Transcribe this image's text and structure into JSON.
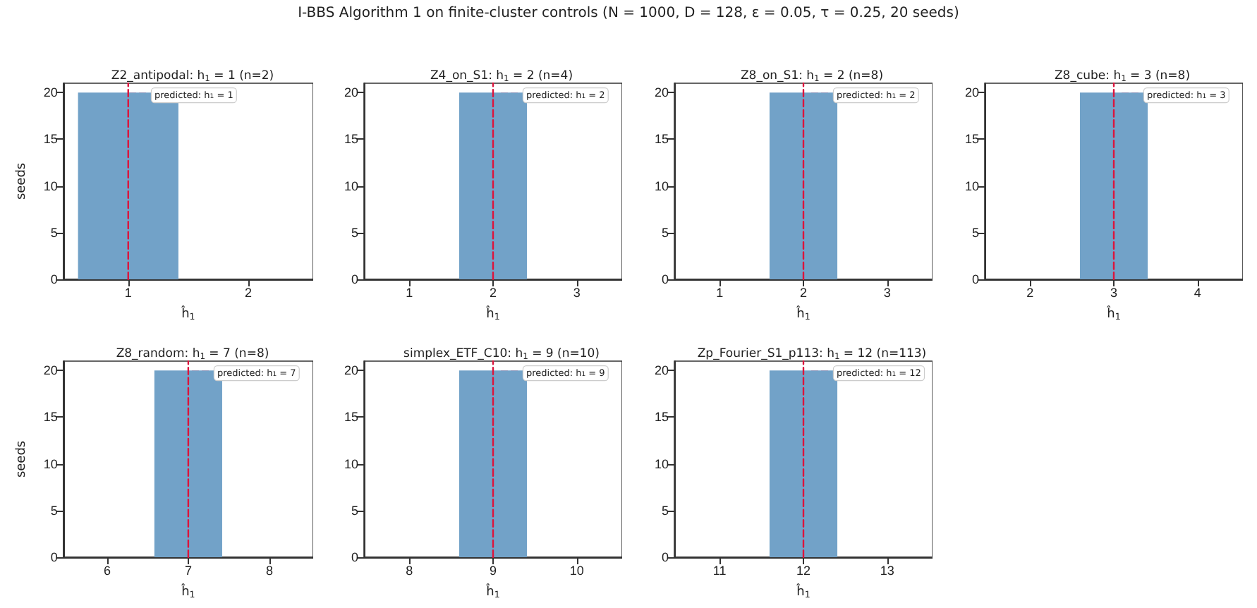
{
  "chart_data": [
    {
      "type": "other",
      "title": "I-BBS Algorithm 1 on finite-cluster controls (N = 1000, D = 128, ε = 0.05, τ = 0.25, 20 seeds)"
    },
    {
      "type": "bar",
      "title": "Z2_antipodal: h$_{1}$ = 1 (n=2)",
      "xlabel": "ĥ$_{1}$",
      "ylabel": "seeds",
      "x": [
        1,
        2
      ],
      "values": [
        20,
        0
      ],
      "color": "#72a2c8",
      "xlim": [
        0.46,
        2.54
      ],
      "xticks": [
        1,
        2
      ],
      "ylim": [
        0,
        21
      ],
      "yticks": [
        0,
        5,
        10,
        15,
        20
      ],
      "ref_lines": [
        {
          "axis": "x",
          "value": 1,
          "label": "predicted: h$_{1}$ = 1",
          "color": "#dc143c",
          "line_style": "dashed"
        }
      ],
      "legend": "top right"
    },
    {
      "type": "bar",
      "title": "Z4_on_S1: h$_{1}$ = 2 (n=4)",
      "xlabel": "ĥ$_{1}$",
      "x": [
        1,
        2,
        3
      ],
      "values": [
        0,
        20,
        0
      ],
      "color": "#72a2c8",
      "xlim": [
        0.46,
        3.54
      ],
      "xticks": [
        1,
        2,
        3
      ],
      "ylim": [
        0,
        21
      ],
      "yticks": [
        0,
        5,
        10,
        15,
        20
      ],
      "ref_lines": [
        {
          "axis": "x",
          "value": 2,
          "label": "predicted: h$_{1}$ = 2",
          "color": "#dc143c",
          "line_style": "dashed"
        }
      ],
      "legend": "top right"
    },
    {
      "type": "bar",
      "title": "Z8_on_S1: h$_{1}$ = 2 (n=8)",
      "xlabel": "ĥ$_{1}$",
      "x": [
        1,
        2,
        3
      ],
      "values": [
        0,
        20,
        0
      ],
      "color": "#72a2c8",
      "xlim": [
        0.46,
        3.54
      ],
      "xticks": [
        1,
        2,
        3
      ],
      "ylim": [
        0,
        21
      ],
      "yticks": [
        0,
        5,
        10,
        15,
        20
      ],
      "ref_lines": [
        {
          "axis": "x",
          "value": 2,
          "label": "predicted: h$_{1}$ = 2",
          "color": "#dc143c",
          "line_style": "dashed"
        }
      ],
      "legend": "top right"
    },
    {
      "type": "bar",
      "title": "Z8_cube: h$_{1}$ = 3 (n=8)",
      "xlabel": "ĥ$_{1}$",
      "x": [
        2,
        3,
        4
      ],
      "values": [
        0,
        20,
        0
      ],
      "color": "#72a2c8",
      "xlim": [
        1.46,
        4.54
      ],
      "xticks": [
        2,
        3,
        4
      ],
      "ylim": [
        0,
        21
      ],
      "yticks": [
        0,
        5,
        10,
        15,
        20
      ],
      "ref_lines": [
        {
          "axis": "x",
          "value": 3,
          "label": "predicted: h$_{1}$ = 3",
          "color": "#dc143c",
          "line_style": "dashed"
        }
      ],
      "legend": "top right"
    },
    {
      "type": "bar",
      "title": "Z8_random: h$_{1}$ = 7 (n=8)",
      "xlabel": "ĥ$_{1}$",
      "ylabel": "seeds",
      "x": [
        6,
        7,
        8
      ],
      "values": [
        0,
        20,
        0
      ],
      "color": "#72a2c8",
      "xlim": [
        5.46,
        8.54
      ],
      "xticks": [
        6,
        7,
        8
      ],
      "ylim": [
        0,
        21
      ],
      "yticks": [
        0,
        5,
        10,
        15,
        20
      ],
      "ref_lines": [
        {
          "axis": "x",
          "value": 7,
          "label": "predicted: h$_{1}$ = 7",
          "color": "#dc143c",
          "line_style": "dashed"
        }
      ],
      "legend": "top right"
    },
    {
      "type": "bar",
      "title": "simplex_ETF_C10: h$_{1}$ = 9 (n=10)",
      "xlabel": "ĥ$_{1}$",
      "x": [
        8,
        9,
        10
      ],
      "values": [
        0,
        20,
        0
      ],
      "color": "#72a2c8",
      "xlim": [
        7.46,
        10.54
      ],
      "xticks": [
        8,
        9,
        10
      ],
      "ylim": [
        0,
        21
      ],
      "yticks": [
        0,
        5,
        10,
        15,
        20
      ],
      "ref_lines": [
        {
          "axis": "x",
          "value": 9,
          "label": "predicted: h$_{1}$ = 9",
          "color": "#dc143c",
          "line_style": "dashed"
        }
      ],
      "legend": "top right"
    },
    {
      "type": "bar",
      "title": "Zp_Fourier_S1_p113: h$_{1}$ = 12 (n=113)",
      "xlabel": "ĥ$_{1}$",
      "x": [
        11,
        12,
        13
      ],
      "values": [
        0,
        20,
        0
      ],
      "color": "#72a2c8",
      "xlim": [
        10.46,
        13.54
      ],
      "xticks": [
        11,
        12,
        13
      ],
      "ylim": [
        0,
        21
      ],
      "yticks": [
        0,
        5,
        10,
        15,
        20
      ],
      "ref_lines": [
        {
          "axis": "x",
          "value": 12,
          "label": "predicted: h$_{1}$ = 12",
          "color": "#dc143c",
          "line_style": "dashed"
        }
      ],
      "legend": "top right"
    }
  ]
}
